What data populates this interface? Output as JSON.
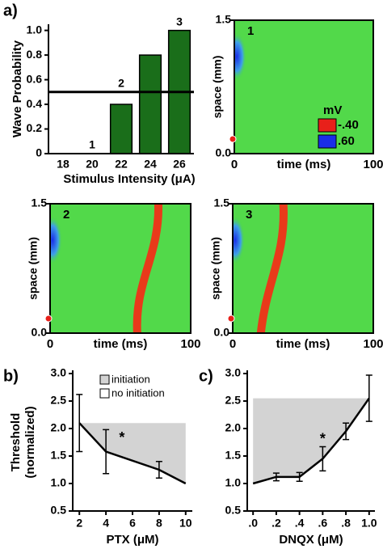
{
  "chart_data": [
    {
      "type": "bar",
      "panel": "a)",
      "categories": [
        "18",
        "20",
        "22",
        "24",
        "26"
      ],
      "values": [
        0,
        0,
        0.4,
        0.8,
        1.0
      ],
      "color": "#1a6e1a",
      "ylim": [
        0,
        1.05
      ],
      "yticks": [
        0,
        0.2,
        0.4,
        0.6,
        0.8,
        {
          "value": 1,
          "label": "1.0"
        }
      ],
      "ylabel": "Wave Probability",
      "xlabel": "Stimulus Intensity (μA)",
      "reference_line": 0.5,
      "annotations": [
        "1",
        "2",
        "3"
      ]
    },
    {
      "type": "heatmap",
      "label": "1",
      "xlim": [
        0,
        100
      ],
      "ylim": [
        0,
        1.5
      ],
      "xticks": [
        0,
        100
      ],
      "yticks": [
        {
          "value": 0,
          "label": "0.0"
        },
        1.5
      ],
      "xlabel": "time (ms)",
      "ylabel": "space (mm)",
      "legend": {
        "title": "mV",
        "items": [
          {
            "label": "-.40",
            "color": "#e8201a"
          },
          {
            "label": ".60",
            "color": "#1a2ee8"
          }
        ]
      }
    },
    {
      "type": "heatmap",
      "label": "2",
      "xlim": [
        0,
        100
      ],
      "ylim": [
        0,
        1.5
      ],
      "xticks": [
        0,
        100
      ],
      "yticks": [
        {
          "value": 0,
          "label": "0.0"
        },
        1.5
      ],
      "xlabel": "time (ms)",
      "ylabel": "space (mm)"
    },
    {
      "type": "heatmap",
      "label": "3",
      "xlim": [
        0,
        100
      ],
      "ylim": [
        0,
        1.5
      ],
      "xticks": [
        0,
        100
      ],
      "yticks": [
        {
          "value": 0,
          "label": "0.0"
        },
        1.5
      ],
      "xlabel": "time (ms)",
      "ylabel": "space (mm)"
    },
    {
      "type": "line",
      "panel": "b)",
      "x": [
        2,
        4,
        8,
        10
      ],
      "values": [
        2.1,
        1.58,
        1.25,
        1.0
      ],
      "errors": [
        0.52,
        0.4,
        0.15,
        null
      ],
      "xlim": [
        1.5,
        10.5
      ],
      "xticks": [
        2,
        4,
        6,
        8,
        10
      ],
      "ylim": [
        0.5,
        3.0
      ],
      "yticks": [
        0.5,
        {
          "value": 1,
          "label": "1.0"
        },
        1.5,
        {
          "value": 2,
          "label": "2.0"
        },
        2.5,
        {
          "value": 3,
          "label": "3.0"
        }
      ],
      "xlabel": "PTX (μM)",
      "ylabel": [
        "Threshold",
        "(normalized)"
      ],
      "shade": "#d3d3d3",
      "annotation": "*",
      "legend": [
        {
          "label": "initiation",
          "color": "#d3d3d3"
        },
        {
          "label": "no initiation",
          "color": "#ffffff"
        }
      ]
    },
    {
      "type": "line",
      "panel": "c)",
      "x": [
        0,
        0.2,
        0.4,
        0.6,
        0.8,
        1.0
      ],
      "values": [
        1.0,
        1.12,
        1.12,
        1.45,
        1.95,
        2.55
      ],
      "errors": [
        null,
        0.07,
        0.08,
        0.22,
        0.15,
        0.42
      ],
      "xlim": [
        -0.05,
        1.05
      ],
      "xticks": [
        {
          "value": 0,
          "label": ".0"
        },
        {
          "value": 0.2,
          "label": ".2"
        },
        {
          "value": 0.4,
          "label": ".4"
        },
        {
          "value": 0.6,
          "label": ".6"
        },
        {
          "value": 0.8,
          "label": ".8"
        },
        {
          "value": 1,
          "label": "1.0"
        }
      ],
      "ylim": [
        0.5,
        3.0
      ],
      "yticks": [
        0.5,
        {
          "value": 1,
          "label": "1.0"
        },
        1.5,
        {
          "value": 2,
          "label": "2.0"
        },
        2.5,
        {
          "value": 3,
          "label": "3.0"
        }
      ],
      "xlabel": "DNQX (μM)",
      "shade": "#d3d3d3",
      "annotation": "*"
    }
  ]
}
